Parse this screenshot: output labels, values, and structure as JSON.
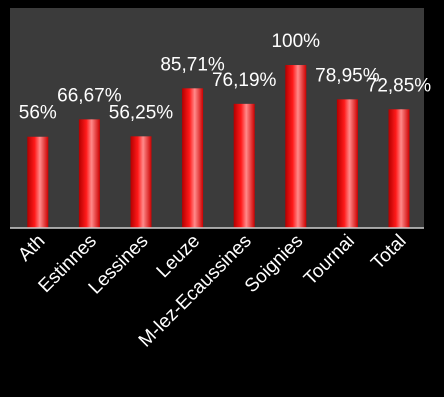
{
  "chart_data": {
    "type": "bar",
    "categories": [
      "Ath",
      "Estinnes",
      "Lessines",
      "Leuze",
      "M-lez-Ecaussines",
      "Soignies",
      "Tournai",
      "Total"
    ],
    "values": [
      56,
      66.67,
      56.25,
      85.71,
      76.19,
      100,
      78.95,
      72.85
    ],
    "data_labels": [
      "56%",
      "66,67%",
      "56,25%",
      "85,71%",
      "76,19%",
      "100%",
      "78,95%",
      "72,85%"
    ],
    "title": "",
    "xlabel": "",
    "ylabel": "",
    "ylim": [
      0,
      135
    ],
    "grid": false,
    "legend": "none",
    "colors": {
      "background": "#000000",
      "plot_area": "#3b3b3b",
      "bar": "#ff0000",
      "bar_highlight": "#ff8a8a",
      "bar_shadow": "#b30000",
      "text": "#ffffff",
      "axis": "#d0d0d0"
    }
  }
}
